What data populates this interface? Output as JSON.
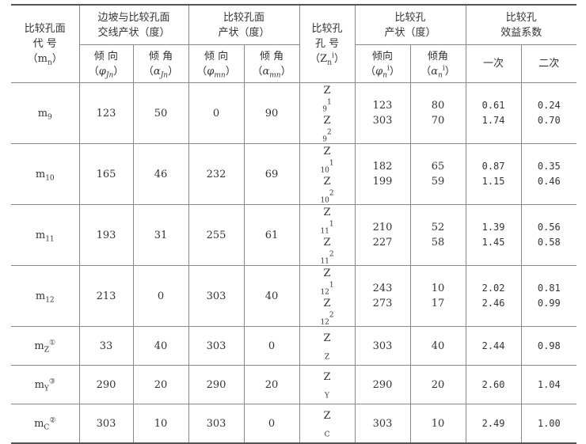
{
  "header": {
    "col_code": [
      "比较孔面",
      "代  号",
      "（m",
      "n",
      "）"
    ],
    "group_intersect": [
      "边坡与比较孔面",
      "交线产状（度）"
    ],
    "group_plane": [
      "比较孔面",
      "产状（度）"
    ],
    "col_hole": [
      "比较孔",
      "孔  号",
      "（Z",
      "n",
      "i",
      "）"
    ],
    "group_hole_att": [
      "比较孔",
      "产状（度）"
    ],
    "group_coef": [
      "比较孔",
      "效益系数"
    ],
    "sub": {
      "dir": "倾  向",
      "dip": "倾  角",
      "dir2": "倾向",
      "dip2": "倾角",
      "phi": "φ",
      "alpha": "α",
      "Jn": "Jn",
      "mn": "mn",
      "n": "n",
      "i": "i",
      "first": "一次",
      "second": "二次"
    }
  },
  "rows": [
    {
      "code": "m",
      "code_sub": "9",
      "code_sup": "",
      "jdir": "123",
      "jdip": "50",
      "mdir": "0",
      "mdip": "90",
      "holes": [
        {
          "z": "Z",
          "sub": "9",
          "sup": "1",
          "dir": "123",
          "dip": "80",
          "c1": "0.61",
          "c2": "0.24"
        },
        {
          "z": "Z",
          "sub": "9",
          "sup": "2",
          "dir": "303",
          "dip": "70",
          "c1": "1.74",
          "c2": "0.70"
        }
      ]
    },
    {
      "code": "m",
      "code_sub": "10",
      "code_sup": "",
      "jdir": "165",
      "jdip": "46",
      "mdir": "232",
      "mdip": "69",
      "holes": [
        {
          "z": "Z",
          "sub": "10",
          "sup": "1",
          "dir": "182",
          "dip": "65",
          "c1": "0.87",
          "c2": "0.35"
        },
        {
          "z": "Z",
          "sub": "10",
          "sup": "2",
          "dir": "199",
          "dip": "59",
          "c1": "1.15",
          "c2": "0.46"
        }
      ]
    },
    {
      "code": "m",
      "code_sub": "11",
      "code_sup": "",
      "jdir": "193",
      "jdip": "31",
      "mdir": "255",
      "mdip": "61",
      "holes": [
        {
          "z": "Z",
          "sub": "11",
          "sup": "1",
          "dir": "210",
          "dip": "52",
          "c1": "1.39",
          "c2": "0.56"
        },
        {
          "z": "Z",
          "sub": "11",
          "sup": "2",
          "dir": "227",
          "dip": "58",
          "c1": "1.45",
          "c2": "0.58"
        }
      ]
    },
    {
      "code": "m",
      "code_sub": "12",
      "code_sup": "",
      "jdir": "213",
      "jdip": "0",
      "mdir": "303",
      "mdip": "40",
      "holes": [
        {
          "z": "Z",
          "sub": "12",
          "sup": "1",
          "dir": "243",
          "dip": "10",
          "c1": "2.02",
          "c2": "0.81"
        },
        {
          "z": "Z",
          "sub": "12",
          "sup": "2",
          "dir": "273",
          "dip": "17",
          "c1": "2.46",
          "c2": "0.99"
        }
      ]
    },
    {
      "code": "m",
      "code_sub": "Z",
      "code_sup": "①",
      "jdir": "33",
      "jdip": "40",
      "mdir": "303",
      "mdip": "0",
      "holes": [
        {
          "z": "Z",
          "sub": "Z",
          "sup": "",
          "dir": "303",
          "dip": "40",
          "c1": "2.44",
          "c2": "0.98"
        }
      ]
    },
    {
      "code": "m",
      "code_sub": "Y",
      "code_sup": "③",
      "jdir": "290",
      "jdip": "20",
      "mdir": "290",
      "mdip": "20",
      "holes": [
        {
          "z": "Z",
          "sub": "Y",
          "sup": "",
          "dir": "290",
          "dip": "20",
          "c1": "2.60",
          "c2": "1.04"
        }
      ]
    },
    {
      "code": "m",
      "code_sub": "C",
      "code_sup": "②",
      "jdir": "303",
      "jdip": "10",
      "mdir": "303",
      "mdip": "0",
      "holes": [
        {
          "z": "Z",
          "sub": "C",
          "sup": "",
          "dir": "303",
          "dip": "10",
          "c1": "2.49",
          "c2": "1.00"
        }
      ]
    }
  ]
}
